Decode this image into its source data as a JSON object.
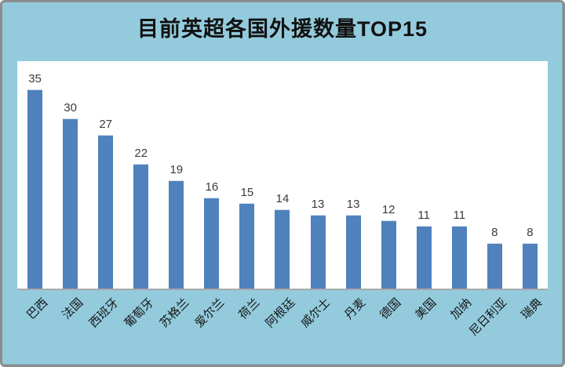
{
  "chart_data": {
    "type": "bar",
    "title": "目前英超各国外援数量TOP15",
    "categories": [
      "巴西",
      "法国",
      "西班牙",
      "葡萄牙",
      "苏格兰",
      "爱尔兰",
      "荷兰",
      "阿根廷",
      "威尔士",
      "丹麦",
      "德国",
      "美国",
      "加纳",
      "尼日利亚",
      "瑞典"
    ],
    "values": [
      35,
      30,
      27,
      22,
      19,
      16,
      15,
      14,
      13,
      13,
      12,
      11,
      11,
      8,
      8
    ],
    "xlabel": "",
    "ylabel": "",
    "ylim": [
      0,
      40
    ],
    "grid": false,
    "legend": false,
    "data_labels": true,
    "x_label_rotation_deg": 45
  },
  "colors": {
    "background": "#93cbdd",
    "plot_background": "#ffffff",
    "frame_border": "#8c8c8c",
    "bar": "#4f81bd",
    "bar_top_highlight": "#c9d9ec",
    "value_label": "#3b3b3b",
    "category_label": "#161616",
    "axis_line": "#a9a9a9",
    "title_text": "#111111"
  }
}
